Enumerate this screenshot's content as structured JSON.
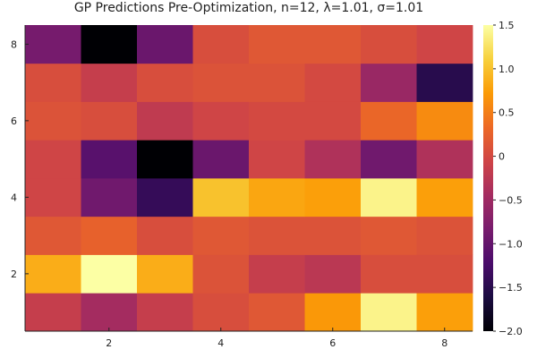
{
  "chart_data": {
    "type": "heatmap",
    "title": "GP Predictions Pre-Optimization, n=12, λ=1.01, σ=1.01",
    "xlabel": "",
    "ylabel": "",
    "x": [
      1,
      2,
      3,
      4,
      5,
      6,
      7,
      8
    ],
    "y": [
      1,
      2,
      3,
      4,
      5,
      6,
      7,
      8
    ],
    "xlim": [
      0.5,
      8.5
    ],
    "ylim": [
      0.5,
      8.5
    ],
    "x_ticks": [
      2,
      4,
      6,
      8
    ],
    "y_ticks": [
      2,
      4,
      6,
      8
    ],
    "color_range": [
      -2.0,
      1.5
    ],
    "colorbar_ticks": [
      -2.0,
      -1.5,
      -1.0,
      -0.5,
      0,
      0.5,
      1.0,
      1.5
    ],
    "colorbar_tick_labels": [
      "−2.0",
      "−1.5",
      "−1.0",
      "−0.5",
      "0",
      "0.5",
      "1.0",
      "1.5"
    ],
    "colormap": "inferno",
    "grid": false,
    "rows": [
      {
        "y": 1,
        "values": [
          -0.15,
          -0.45,
          -0.15,
          0.05,
          0.15,
          0.7,
          1.4,
          0.75
        ]
      },
      {
        "y": 2,
        "values": [
          0.85,
          1.5,
          0.85,
          0.1,
          -0.15,
          -0.25,
          0.05,
          0.05
        ]
      },
      {
        "y": 3,
        "values": [
          0.15,
          0.25,
          0.05,
          0.15,
          0.1,
          0.1,
          0.15,
          0.1
        ]
      },
      {
        "y": 4,
        "values": [
          -0.05,
          -0.9,
          -1.4,
          1.0,
          0.8,
          0.75,
          1.4,
          0.75
        ]
      },
      {
        "y": 5,
        "values": [
          -0.05,
          -1.1,
          -2.0,
          -0.95,
          -0.05,
          -0.35,
          -0.9,
          -0.35
        ]
      },
      {
        "y": 6,
        "values": [
          0.1,
          0.05,
          -0.2,
          -0.05,
          0.0,
          0.0,
          0.3,
          0.6
        ]
      },
      {
        "y": 7,
        "values": [
          0.05,
          -0.15,
          0.05,
          0.1,
          0.1,
          0.0,
          -0.55,
          -1.5
        ]
      },
      {
        "y": 8,
        "values": [
          -0.85,
          -2.0,
          -0.95,
          0.05,
          0.15,
          0.15,
          0.05,
          -0.05
        ]
      }
    ]
  }
}
